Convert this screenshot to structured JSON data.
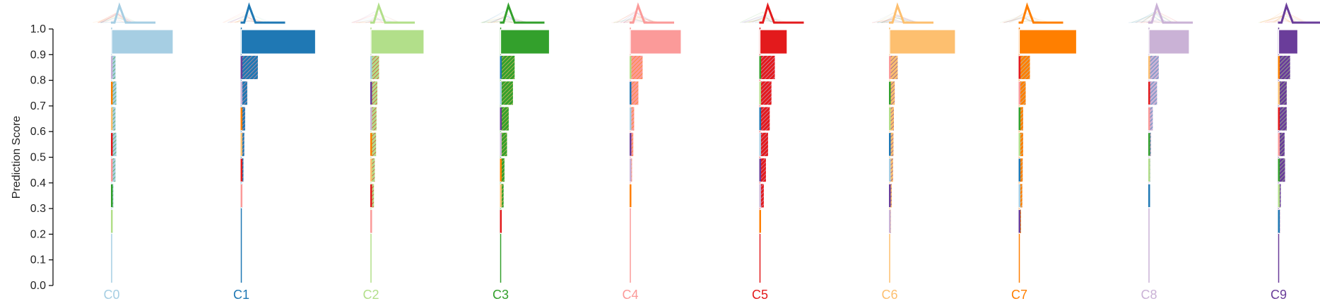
{
  "chart_data": {
    "type": "bar",
    "ylabel": "Prediction Score",
    "ylim": [
      0,
      1
    ],
    "yticks": [
      0.0,
      0.1,
      0.2,
      0.3,
      0.4,
      0.5,
      0.6,
      0.7,
      0.8,
      0.9,
      1.0
    ],
    "ytick_labels": [
      "0.0",
      "0.1",
      "0.2",
      "0.3",
      "0.4",
      "0.5",
      "0.6",
      "0.7",
      "0.8",
      "0.9",
      "1.0"
    ],
    "bins": [
      0.0,
      0.1,
      0.2,
      0.3,
      0.4,
      0.5,
      0.6,
      0.7,
      0.8,
      0.9
    ],
    "classes": [
      {
        "label": "C0",
        "color": "#a6cee3",
        "hist": [
          0,
          0,
          0.3,
          0.5,
          1.0,
          1.2,
          1.0,
          1.2,
          1.0,
          14.5
        ]
      },
      {
        "label": "C1",
        "color": "#1f78b4",
        "hist": [
          0,
          0,
          0,
          0.3,
          0.6,
          0.8,
          1.0,
          1.5,
          4.0,
          17.5
        ]
      },
      {
        "label": "C2",
        "color": "#b2df8a",
        "hist": [
          0,
          0,
          0.3,
          0.8,
          1.0,
          1.3,
          1.4,
          1.6,
          2.0,
          12.5
        ]
      },
      {
        "label": "C3",
        "color": "#33a02c",
        "hist": [
          0,
          0,
          0.3,
          0.8,
          1.0,
          1.6,
          2.0,
          3.0,
          3.4,
          11.5
        ]
      },
      {
        "label": "C4",
        "color": "#fb9a99",
        "hist": [
          0,
          0,
          0,
          0.2,
          0.5,
          0.8,
          1.0,
          2.0,
          3.0,
          12.0
        ]
      },
      {
        "label": "C5",
        "color": "#e31a1c",
        "hist": [
          0,
          0,
          0.2,
          1.0,
          1.5,
          2.0,
          2.4,
          2.8,
          3.6,
          6.4
        ]
      },
      {
        "label": "C6",
        "color": "#fdbf6f",
        "hist": [
          0,
          0,
          0.4,
          0.6,
          0.9,
          1.0,
          1.1,
          1.3,
          2.0,
          15.5
        ]
      },
      {
        "label": "C7",
        "color": "#ff7f00",
        "hist": [
          0,
          0,
          0.5,
          0.8,
          0.9,
          1.0,
          1.0,
          1.6,
          2.6,
          13.5
        ]
      },
      {
        "label": "C8",
        "color": "#cab2d6",
        "hist": [
          0,
          0,
          0,
          0.2,
          0.4,
          0.6,
          1.0,
          2.0,
          2.4,
          9.5
        ]
      },
      {
        "label": "C9",
        "color": "#6a3d9a",
        "hist": [
          0,
          0,
          0.4,
          0.6,
          1.6,
          1.5,
          2.0,
          2.0,
          2.8,
          4.5
        ]
      }
    ]
  }
}
